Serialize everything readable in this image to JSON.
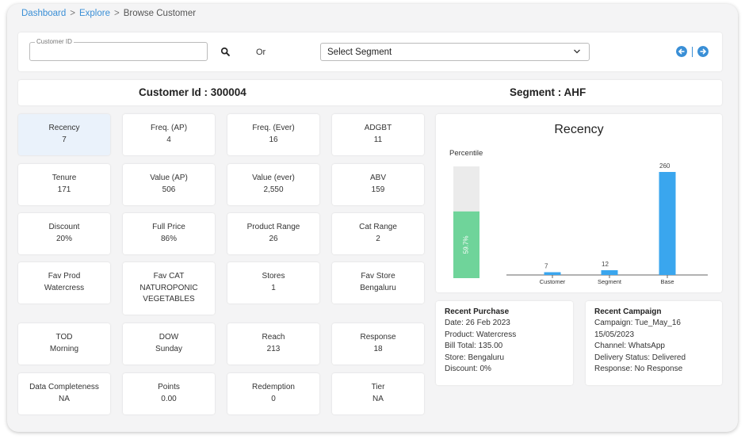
{
  "breadcrumb": {
    "items": [
      "Dashboard",
      "Explore",
      "Browse Customer"
    ],
    "separator": ">"
  },
  "search": {
    "customer_id_label": "Customer ID",
    "customer_id_value": "",
    "or_text": "Or",
    "segment_placeholder": "Select Segment",
    "icons": [
      "search-icon",
      "chevron-down-icon",
      "arrow-left-circle-icon",
      "arrow-right-circle-icon"
    ]
  },
  "header": {
    "customer_id": "Customer Id : 300004",
    "segment": "Segment : AHF"
  },
  "metrics": [
    {
      "label": "Recency",
      "value": "7"
    },
    {
      "label": "Freq. (AP)",
      "value": "4"
    },
    {
      "label": "Freq. (Ever)",
      "value": "16"
    },
    {
      "label": "ADGBT",
      "value": "11"
    },
    {
      "label": "Tenure",
      "value": "171"
    },
    {
      "label": "Value (AP)",
      "value": "506"
    },
    {
      "label": "Value (ever)",
      "value": "2,550"
    },
    {
      "label": "ABV",
      "value": "159"
    },
    {
      "label": "Discount",
      "value": "20%"
    },
    {
      "label": "Full Price",
      "value": "86%"
    },
    {
      "label": "Product Range",
      "value": "26"
    },
    {
      "label": "Cat Range",
      "value": "2"
    },
    {
      "label": "Fav Prod",
      "value": "Watercress"
    },
    {
      "label": "Fav CAT",
      "value": "NATUROPONIC\nVEGETABLES"
    },
    {
      "label": "Stores",
      "value": "1"
    },
    {
      "label": "Fav Store",
      "value": "Bengaluru"
    },
    {
      "label": "TOD",
      "value": "Morning"
    },
    {
      "label": "DOW",
      "value": "Sunday"
    },
    {
      "label": "Reach",
      "value": "213"
    },
    {
      "label": "Response",
      "value": "18"
    },
    {
      "label": "Data Completeness",
      "value": "NA"
    },
    {
      "label": "Points",
      "value": "0.00"
    },
    {
      "label": "Redemption",
      "value": "0"
    },
    {
      "label": "Tier",
      "value": "NA"
    }
  ],
  "chart_data": {
    "type": "bar",
    "title": "Recency",
    "percentile_label": "Percentile",
    "percentile_value": 59.7,
    "percentile_text": "59.7%",
    "categories": [
      "Customer",
      "Segment",
      "Base"
    ],
    "values": [
      7,
      12,
      260
    ],
    "value_labels": [
      "7",
      "12",
      "260"
    ],
    "ylim": [
      0,
      260
    ],
    "colors": {
      "bar": "#3aa6ee",
      "percentile_fill": "#6fd49a",
      "percentile_track": "#ebebeb",
      "axis": "#666666"
    }
  },
  "recent_purchase": {
    "title": "Recent Purchase",
    "lines": [
      "Date: 26 Feb 2023",
      "Product: Watercress",
      "Bill Total: 135.00",
      "Store: Bengaluru",
      "Discount: 0%"
    ]
  },
  "recent_campaign": {
    "title": "Recent Campaign",
    "lines": [
      "Campaign: Tue_May_16",
      "15/05/2023",
      "Channel: WhatsApp",
      "Delivery Status: Delivered",
      "Response: No Response"
    ]
  },
  "colors": {
    "accent": "#3a8fd6",
    "active_tile": "#eaf2fb"
  }
}
